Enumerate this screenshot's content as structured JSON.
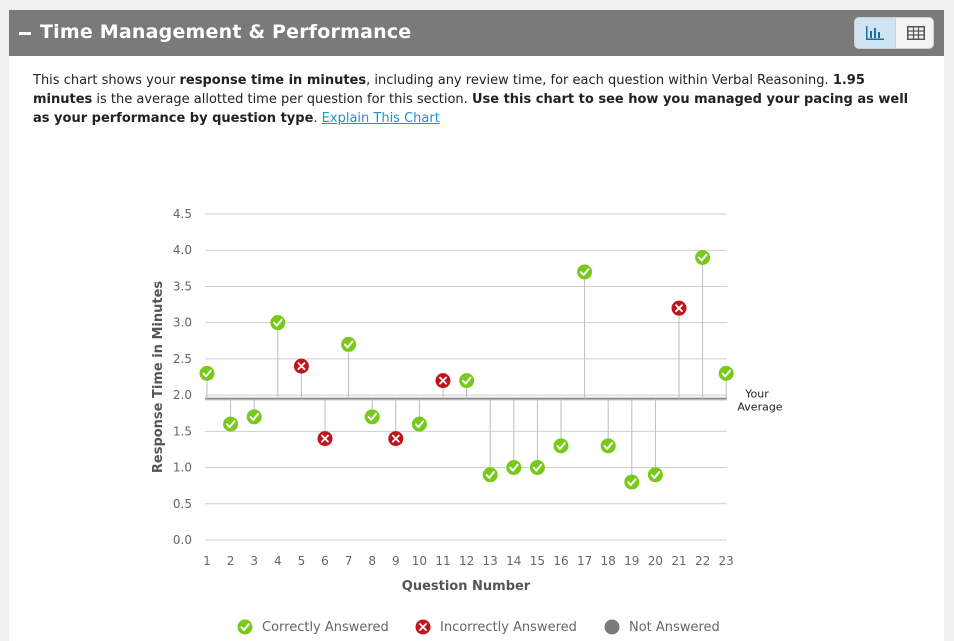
{
  "header": {
    "title": "Time Management & Performance"
  },
  "description": {
    "part1": "This chart shows your ",
    "bold1": "response time in minutes",
    "part2": ", including any review time, for each question within Verbal Reasoning. ",
    "bold2": "1.95 minutes",
    "part3": " is the average allotted time per question for this section. ",
    "bold3": "Use this chart to see how you managed your pacing as well as your performance by question type",
    "part4": ". ",
    "link": "Explain This Chart"
  },
  "colors": {
    "correct": "#77c91a",
    "incorrect": "#c0161b",
    "not_answered": "#7a7a7a",
    "header_bg": "#7a7a7a",
    "toggle_active": "#cfe3f3"
  },
  "chart_data": {
    "type": "scatter",
    "xlabel": "Question Number",
    "ylabel": "Response Time in Minutes",
    "ylim": [
      0,
      4.5
    ],
    "yticks": [
      "0.0",
      "0.5",
      "1.0",
      "1.5",
      "2.0",
      "2.5",
      "3.0",
      "3.5",
      "4.0",
      "4.5"
    ],
    "x": [
      1,
      2,
      3,
      4,
      5,
      6,
      7,
      8,
      9,
      10,
      11,
      12,
      13,
      14,
      15,
      16,
      17,
      18,
      19,
      20,
      21,
      22,
      23
    ],
    "y": [
      2.3,
      1.6,
      1.7,
      3.0,
      2.4,
      1.4,
      2.7,
      1.7,
      1.4,
      1.6,
      2.2,
      2.2,
      0.9,
      1.0,
      1.0,
      1.3,
      3.7,
      1.3,
      0.8,
      0.9,
      3.2,
      3.9,
      2.3
    ],
    "status": [
      "correct",
      "correct",
      "correct",
      "correct",
      "incorrect",
      "incorrect",
      "correct",
      "correct",
      "incorrect",
      "correct",
      "incorrect",
      "correct",
      "correct",
      "correct",
      "correct",
      "correct",
      "correct",
      "correct",
      "correct",
      "correct",
      "incorrect",
      "correct",
      "correct"
    ],
    "average": 1.95,
    "average_label_line1": "Your",
    "average_label_line2": "Average",
    "grid": true,
    "legend_position": "bottom",
    "legend": [
      {
        "key": "correct",
        "label": "Correctly Answered"
      },
      {
        "key": "incorrect",
        "label": "Incorrectly Answered"
      },
      {
        "key": "not_answered",
        "label": "Not Answered"
      }
    ]
  }
}
